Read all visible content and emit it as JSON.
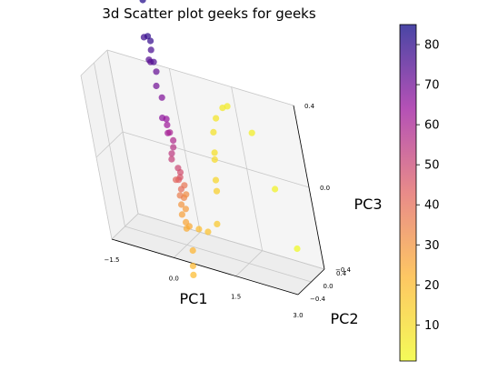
{
  "chart_data": {
    "type": "scatter3d",
    "title": "3d Scatter plot geeks for geeks",
    "xlabel": "PC1",
    "ylabel": "PC2",
    "zlabel": "PC3",
    "x_ticks": [
      "−1.5",
      "0.0",
      "1.5",
      "3.0"
    ],
    "y_ticks": [
      "−0.4",
      "0.0",
      "0.4"
    ],
    "z_ticks": [
      "−0.4",
      "0.0",
      "0.4"
    ],
    "xlim": [
      -1.5,
      3.0
    ],
    "ylim": [
      -0.4,
      0.4
    ],
    "zlim": [
      -0.4,
      0.4
    ],
    "colormap": "plasma_r",
    "colorbar": {
      "range": [
        1,
        85
      ],
      "ticks": [
        "10",
        "20",
        "30",
        "40",
        "50",
        "60",
        "70",
        "80"
      ]
    },
    "grid": true,
    "points": [
      {
        "x": 0.05,
        "y": -0.05,
        "z": 0.95,
        "c": 84
      },
      {
        "x": 0.05,
        "y": 0.0,
        "z": 0.8,
        "c": 82
      },
      {
        "x": 0.0,
        "y": 0.0,
        "z": 0.62,
        "c": 80
      },
      {
        "x": 0.05,
        "y": 0.0,
        "z": 0.6,
        "c": 79
      },
      {
        "x": -0.05,
        "y": -0.05,
        "z": 0.62,
        "c": 78
      },
      {
        "x": 0.0,
        "y": 0.02,
        "z": 0.55,
        "c": 76
      },
      {
        "x": 0.05,
        "y": -0.02,
        "z": 0.5,
        "c": 75
      },
      {
        "x": -0.08,
        "y": 0.0,
        "z": 0.5,
        "c": 74
      },
      {
        "x": -0.1,
        "y": 0.05,
        "z": 0.48,
        "c": 73
      },
      {
        "x": 0.05,
        "y": 0.0,
        "z": 0.45,
        "c": 72
      },
      {
        "x": 0.0,
        "y": -0.02,
        "z": 0.38,
        "c": 70
      },
      {
        "x": 0.05,
        "y": 0.02,
        "z": 0.32,
        "c": 68
      },
      {
        "x": -0.02,
        "y": 0.0,
        "z": 0.22,
        "c": 66
      },
      {
        "x": 0.08,
        "y": 0.0,
        "z": 0.22,
        "c": 65
      },
      {
        "x": 0.02,
        "y": 0.05,
        "z": 0.18,
        "c": 63
      },
      {
        "x": 0.05,
        "y": 0.0,
        "z": 0.15,
        "c": 62
      },
      {
        "x": 0.12,
        "y": -0.02,
        "z": 0.16,
        "c": 60
      },
      {
        "x": 0.15,
        "y": 0.0,
        "z": 0.12,
        "c": 58
      },
      {
        "x": 0.1,
        "y": 0.02,
        "z": 0.08,
        "c": 56
      },
      {
        "x": 0.05,
        "y": 0.0,
        "z": 0.05,
        "c": 54
      },
      {
        "x": 0.02,
        "y": 0.0,
        "z": 0.02,
        "c": 52
      },
      {
        "x": 0.12,
        "y": 0.02,
        "z": -0.02,
        "c": 50
      },
      {
        "x": 0.2,
        "y": -0.02,
        "z": -0.03,
        "c": 48
      },
      {
        "x": 0.15,
        "y": 0.0,
        "z": -0.06,
        "c": 46
      },
      {
        "x": 0.08,
        "y": 0.02,
        "z": -0.08,
        "c": 44
      },
      {
        "x": 0.03,
        "y": 0.0,
        "z": -0.08,
        "c": 42
      },
      {
        "x": 0.12,
        "y": 0.0,
        "z": -0.12,
        "c": 40
      },
      {
        "x": 0.2,
        "y": 0.02,
        "z": -0.1,
        "c": 38
      },
      {
        "x": 0.08,
        "y": -0.02,
        "z": -0.15,
        "c": 36
      },
      {
        "x": 0.15,
        "y": 0.0,
        "z": -0.16,
        "c": 34
      },
      {
        "x": 0.22,
        "y": 0.0,
        "z": -0.14,
        "c": 32
      },
      {
        "x": 0.05,
        "y": 0.0,
        "z": -0.2,
        "c": 30
      },
      {
        "x": 0.12,
        "y": 0.02,
        "z": -0.22,
        "c": 28
      },
      {
        "x": 0.02,
        "y": 0.0,
        "z": -0.25,
        "c": 27
      },
      {
        "x": 0.1,
        "y": -0.02,
        "z": -0.28,
        "c": 26
      },
      {
        "x": 0.15,
        "y": 0.0,
        "z": -0.3,
        "c": 25
      },
      {
        "x": 0.05,
        "y": 0.02,
        "z": -0.32,
        "c": 24
      },
      {
        "x": 0.12,
        "y": 0.0,
        "z": -0.42,
        "c": 22
      },
      {
        "x": 0.05,
        "y": 0.0,
        "z": -0.5,
        "c": 21
      },
      {
        "x": 0.0,
        "y": 0.02,
        "z": -0.55,
        "c": 20
      },
      {
        "x": 0.38,
        "y": 0.0,
        "z": -0.3,
        "c": 20
      },
      {
        "x": 0.6,
        "y": 0.0,
        "z": -0.3,
        "c": 18
      },
      {
        "x": 0.85,
        "y": 0.02,
        "z": -0.25,
        "c": 16
      },
      {
        "x": 1.0,
        "y": 0.02,
        "z": -0.08,
        "c": 14
      },
      {
        "x": 1.05,
        "y": 0.0,
        "z": -0.02,
        "c": 12
      },
      {
        "x": 1.1,
        "y": 0.02,
        "z": 0.08,
        "c": 10
      },
      {
        "x": 1.15,
        "y": 0.0,
        "z": 0.12,
        "c": 9
      },
      {
        "x": 1.2,
        "y": 0.02,
        "z": 0.22,
        "c": 8
      },
      {
        "x": 1.35,
        "y": 0.0,
        "z": 0.3,
        "c": 7
      },
      {
        "x": 1.55,
        "y": 0.02,
        "z": 0.36,
        "c": 6
      },
      {
        "x": 1.7,
        "y": 0.0,
        "z": 0.38,
        "c": 5
      },
      {
        "x": 2.2,
        "y": 0.0,
        "z": 0.28,
        "c": 4
      },
      {
        "x": 2.5,
        "y": 0.02,
        "z": 0.02,
        "c": 3
      },
      {
        "x": 2.8,
        "y": 0.0,
        "z": -0.25,
        "c": 1
      }
    ]
  }
}
